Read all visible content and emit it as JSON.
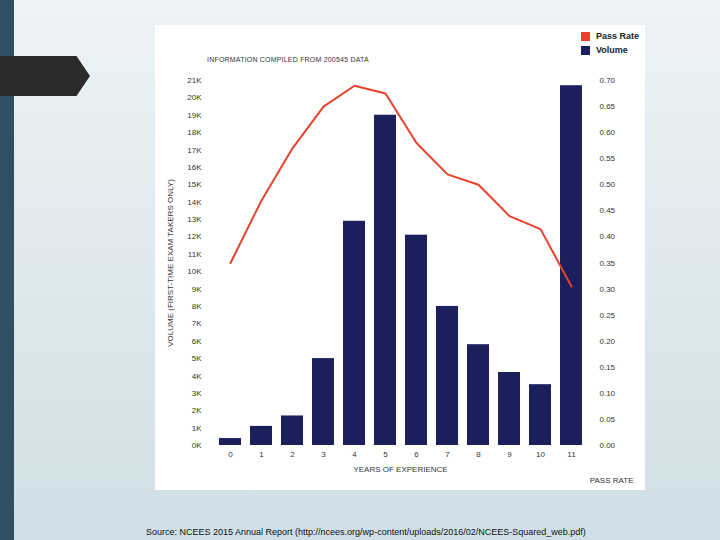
{
  "chart_data": {
    "type": "bar",
    "subtitle": "INFORMATION COMPILED FROM 200545 DATA",
    "caption": "Source: NCEES 2015 Annual Report (http://ncees.org/wp-content/uploads/2016/02/NCEES-Squared_web.pdf)",
    "x_label": "YEARS OF EXPERIENCE",
    "y_label": "VOLUME (FIRST-TIME EXAM TAKERS ONLY)",
    "y2_label": "PASS RATE",
    "categories": [
      "0",
      "1",
      "2",
      "3",
      "4",
      "5",
      "6",
      "7",
      "8",
      "9",
      "10",
      "11"
    ],
    "series": [
      {
        "name": "Pass Rate",
        "type": "line",
        "axis": "y2",
        "color": "#e8412c",
        "values": [
          0.35,
          0.47,
          0.57,
          0.65,
          0.69,
          0.675,
          0.58,
          0.52,
          0.5,
          0.44,
          0.415,
          0.305
        ]
      },
      {
        "name": "Volume",
        "type": "bar",
        "color": "#1b1f5c",
        "values": [
          400,
          1100,
          1700,
          5000,
          12900,
          19000,
          12100,
          8000,
          5800,
          4200,
          3500,
          20700
        ]
      }
    ],
    "ylim": [
      0,
      21000
    ],
    "yticks": [
      {
        "value": 0,
        "label": "0K"
      },
      {
        "value": 1000,
        "label": "1K"
      },
      {
        "value": 2000,
        "label": "2K"
      },
      {
        "value": 3000,
        "label": "3K"
      },
      {
        "value": 4000,
        "label": "4K"
      },
      {
        "value": 5000,
        "label": "5K"
      },
      {
        "value": 6000,
        "label": "6K"
      },
      {
        "value": 7000,
        "label": "7K"
      },
      {
        "value": 8000,
        "label": "8K"
      },
      {
        "value": 9000,
        "label": "9K"
      },
      {
        "value": 10000,
        "label": "10K"
      },
      {
        "value": 11000,
        "label": "11K"
      },
      {
        "value": 12000,
        "label": "12K"
      },
      {
        "value": 13000,
        "label": "13K"
      },
      {
        "value": 14000,
        "label": "14K"
      },
      {
        "value": 15000,
        "label": "15K"
      },
      {
        "value": 16000,
        "label": "16K"
      },
      {
        "value": 17000,
        "label": "17K"
      },
      {
        "value": 18000,
        "label": "18K"
      },
      {
        "value": 19000,
        "label": "19K"
      },
      {
        "value": 20000,
        "label": "20K"
      },
      {
        "value": 21000,
        "label": "21K"
      }
    ],
    "y2lim": [
      0,
      0.7
    ],
    "y2ticks": [
      {
        "value": 0,
        "label": "0.00"
      },
      {
        "value": 0.05,
        "label": "0.05"
      },
      {
        "value": 0.1,
        "label": "0.10"
      },
      {
        "value": 0.15,
        "label": "0.15"
      },
      {
        "value": 0.2,
        "label": "0.20"
      },
      {
        "value": 0.25,
        "label": "0.25"
      },
      {
        "value": 0.3,
        "label": "0.30"
      },
      {
        "value": 0.35,
        "label": "0.35"
      },
      {
        "value": 0.4,
        "label": "0.40"
      },
      {
        "value": 0.45,
        "label": "0.45"
      },
      {
        "value": 0.5,
        "label": "0.50"
      },
      {
        "value": 0.55,
        "label": "0.55"
      },
      {
        "value": 0.6,
        "label": "0.60"
      },
      {
        "value": 0.65,
        "label": "0.65"
      },
      {
        "value": 0.7,
        "label": "0.70"
      }
    ],
    "legend": "top-right",
    "grid": false
  }
}
